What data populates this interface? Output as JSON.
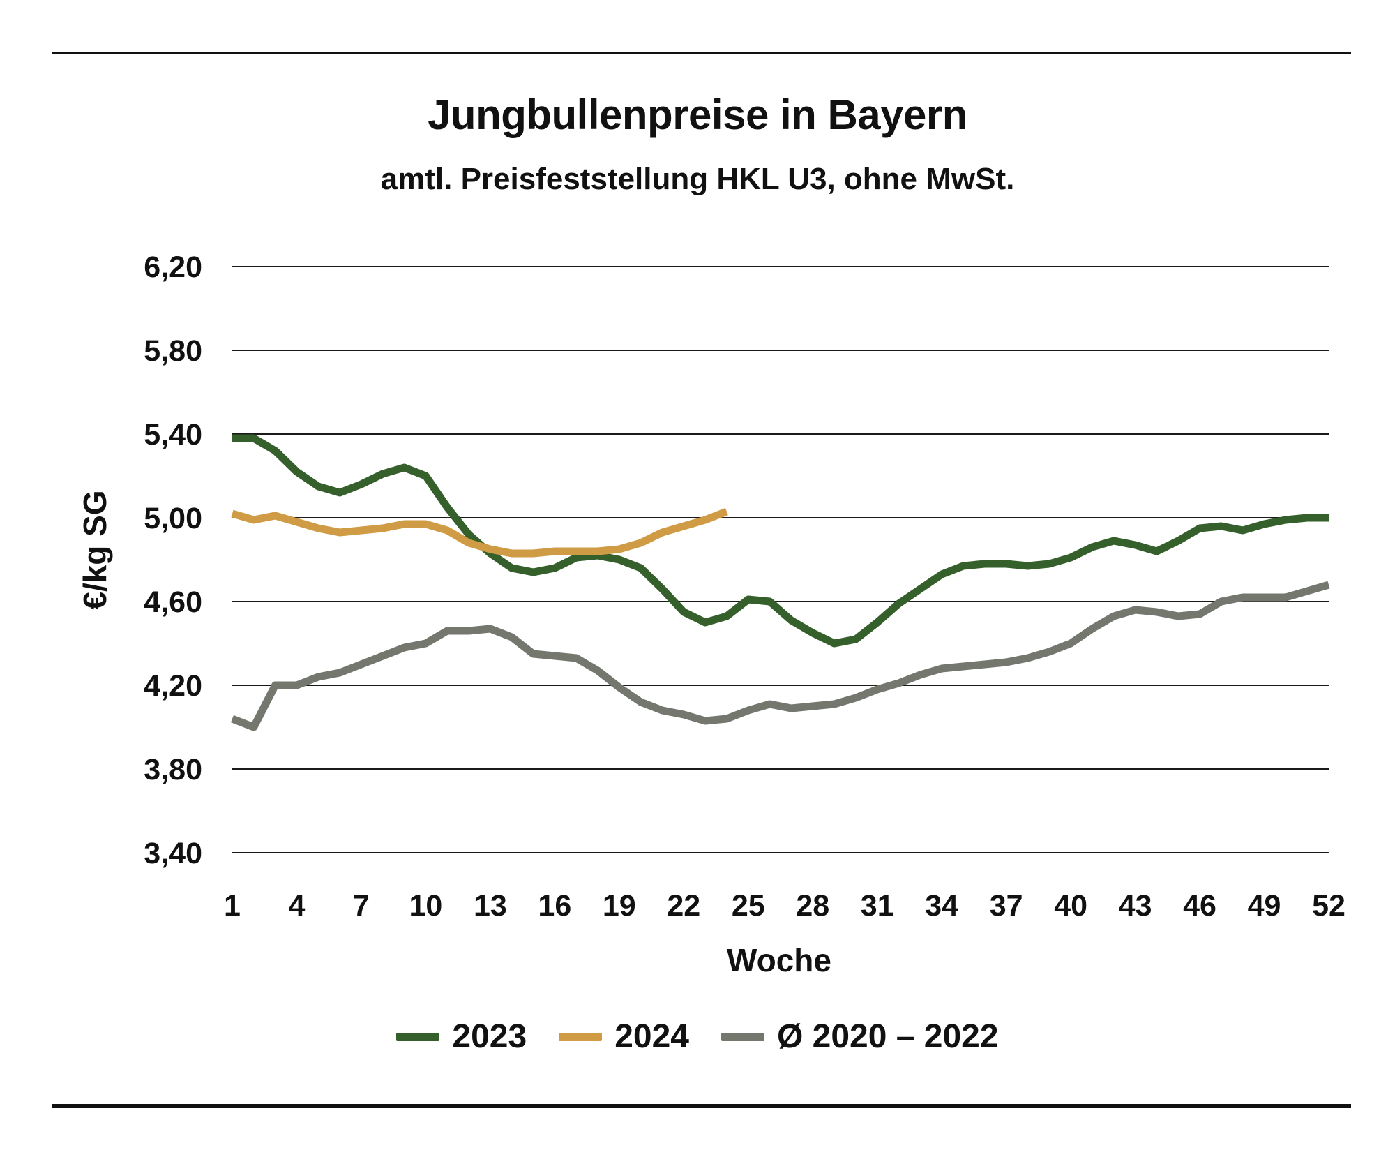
{
  "chart_data": {
    "type": "line",
    "title": "Jungbullenpreise in Bayern",
    "subtitle": "amtl. Preisfeststellung HKL U3, ohne MwSt.",
    "xlabel": "Woche",
    "ylabel": "€/kg SG",
    "xlim": [
      1,
      52
    ],
    "ylim": [
      3.4,
      6.2
    ],
    "x_ticks": [
      1,
      4,
      7,
      10,
      13,
      16,
      19,
      22,
      25,
      28,
      31,
      34,
      37,
      40,
      43,
      46,
      49,
      52
    ],
    "y_ticks": [
      3.4,
      3.8,
      4.2,
      4.6,
      5.0,
      5.4,
      5.8,
      6.2
    ],
    "y_tick_labels": [
      "3,40",
      "3,80",
      "4,20",
      "4,60",
      "5,00",
      "5,40",
      "5,80",
      "6,20"
    ],
    "grid": "horizontal",
    "legend_position": "bottom",
    "series": [
      {
        "name": "2023",
        "color": "#35602b",
        "x": [
          1,
          2,
          3,
          4,
          5,
          6,
          7,
          8,
          9,
          10,
          11,
          12,
          13,
          14,
          15,
          16,
          17,
          18,
          19,
          20,
          21,
          22,
          23,
          24,
          25,
          26,
          27,
          28,
          29,
          30,
          31,
          32,
          33,
          34,
          35,
          36,
          37,
          38,
          39,
          40,
          41,
          42,
          43,
          44,
          45,
          46,
          47,
          48,
          49,
          50,
          51,
          52
        ],
        "values": [
          5.38,
          5.38,
          5.32,
          5.22,
          5.15,
          5.12,
          5.16,
          5.21,
          5.24,
          5.2,
          5.05,
          4.92,
          4.83,
          4.76,
          4.74,
          4.76,
          4.81,
          4.82,
          4.8,
          4.76,
          4.66,
          4.55,
          4.5,
          4.53,
          4.61,
          4.6,
          4.51,
          4.45,
          4.4,
          4.42,
          4.5,
          4.59,
          4.66,
          4.73,
          4.77,
          4.78,
          4.78,
          4.77,
          4.78,
          4.81,
          4.86,
          4.89,
          4.87,
          4.84,
          4.89,
          4.95,
          4.96,
          4.94,
          4.97,
          4.99,
          5.0,
          5.0
        ]
      },
      {
        "name": "2024",
        "color": "#cf9b45",
        "x": [
          1,
          2,
          3,
          4,
          5,
          6,
          7,
          8,
          9,
          10,
          11,
          12,
          13,
          14,
          15,
          16,
          17,
          18,
          19,
          20,
          21,
          22,
          23,
          24
        ],
        "values": [
          5.02,
          4.99,
          5.01,
          4.98,
          4.95,
          4.93,
          4.94,
          4.95,
          4.97,
          4.97,
          4.94,
          4.88,
          4.85,
          4.83,
          4.83,
          4.84,
          4.84,
          4.84,
          4.85,
          4.88,
          4.93,
          4.96,
          4.99,
          5.03
        ]
      },
      {
        "name": "Ø 2020 – 2022",
        "color": "#73776e",
        "x": [
          1,
          2,
          3,
          4,
          5,
          6,
          7,
          8,
          9,
          10,
          11,
          12,
          13,
          14,
          15,
          16,
          17,
          18,
          19,
          20,
          21,
          22,
          23,
          24,
          25,
          26,
          27,
          28,
          29,
          30,
          31,
          32,
          33,
          34,
          35,
          36,
          37,
          38,
          39,
          40,
          41,
          42,
          43,
          44,
          45,
          46,
          47,
          48,
          49,
          50,
          51,
          52
        ],
        "values": [
          4.04,
          4.0,
          4.2,
          4.2,
          4.24,
          4.26,
          4.3,
          4.34,
          4.38,
          4.4,
          4.46,
          4.46,
          4.47,
          4.43,
          4.35,
          4.34,
          4.33,
          4.27,
          4.19,
          4.12,
          4.08,
          4.06,
          4.03,
          4.04,
          4.08,
          4.11,
          4.09,
          4.1,
          4.11,
          4.14,
          4.18,
          4.21,
          4.25,
          4.28,
          4.29,
          4.3,
          4.31,
          4.33,
          4.36,
          4.4,
          4.47,
          4.53,
          4.56,
          4.55,
          4.53,
          4.54,
          4.6,
          4.62,
          4.62,
          4.62,
          4.65,
          4.68
        ]
      }
    ]
  }
}
